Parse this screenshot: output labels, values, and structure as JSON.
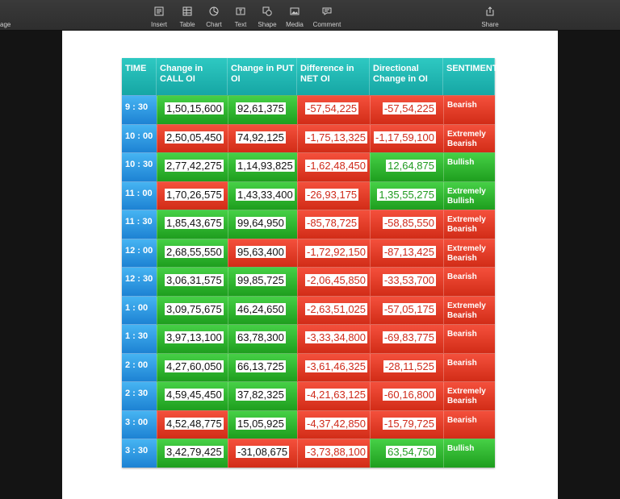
{
  "toolbar": {
    "left_label": "age",
    "items": [
      {
        "label": "Insert",
        "icon": "insert-icon"
      },
      {
        "label": "Table",
        "icon": "table-icon"
      },
      {
        "label": "Chart",
        "icon": "chart-icon"
      },
      {
        "label": "Text",
        "icon": "text-icon"
      },
      {
        "label": "Shape",
        "icon": "shape-icon"
      },
      {
        "label": "Media",
        "icon": "media-icon"
      },
      {
        "label": "Comment",
        "icon": "comment-icon"
      },
      {
        "label": "Share",
        "icon": "share-icon"
      }
    ]
  },
  "table": {
    "headers": [
      "TIME",
      "Change in CALL OI",
      "Change in PUT OI",
      "Difference in NET OI",
      "Directional Change in OI",
      "SENTIMENT"
    ],
    "colors": {
      "header": "#1eb5b0",
      "time": "#2f97e0",
      "green": "#2bb02b",
      "red": "#e23c24"
    },
    "rows": [
      {
        "time": "9 : 30",
        "call": "1,50,15,600",
        "put": "92,61,375",
        "net": "-57,54,225",
        "dir": "-57,54,225",
        "sentiment": "Bearish"
      },
      {
        "time": "10 : 00",
        "call": "2,50,05,450",
        "put": "74,92,125",
        "net": "-1,75,13,325",
        "dir": "-1,17,59,100",
        "sentiment": "Extremely Bearish"
      },
      {
        "time": "10 : 30",
        "call": "2,77,42,275",
        "put": "1,14,93,825",
        "net": "-1,62,48,450",
        "dir": "12,64,875",
        "sentiment": "Bullish"
      },
      {
        "time": "11 : 00",
        "call": "1,70,26,575",
        "put": "1,43,33,400",
        "net": "-26,93,175",
        "dir": "1,35,55,275",
        "sentiment": "Extremely Bullish"
      },
      {
        "time": "11 : 30",
        "call": "1,85,43,675",
        "put": "99,64,950",
        "net": "-85,78,725",
        "dir": "-58,85,550",
        "sentiment": "Extremely Bearish"
      },
      {
        "time": "12 : 00",
        "call": "2,68,55,550",
        "put": "95,63,400",
        "net": "-1,72,92,150",
        "dir": "-87,13,425",
        "sentiment": "Extremely Bearish"
      },
      {
        "time": "12 : 30",
        "call": "3,06,31,575",
        "put": "99,85,725",
        "net": "-2,06,45,850",
        "dir": "-33,53,700",
        "sentiment": "Bearish"
      },
      {
        "time": "1 : 00",
        "call": "3,09,75,675",
        "put": "46,24,650",
        "net": "-2,63,51,025",
        "dir": "-57,05,175",
        "sentiment": "Extremely Bearish"
      },
      {
        "time": "1 : 30",
        "call": "3,97,13,100",
        "put": "63,78,300",
        "net": "-3,33,34,800",
        "dir": "-69,83,775",
        "sentiment": "Bearish"
      },
      {
        "time": "2 : 00",
        "call": "4,27,60,050",
        "put": "66,13,725",
        "net": "-3,61,46,325",
        "dir": "-28,11,525",
        "sentiment": "Bearish"
      },
      {
        "time": "2 : 30",
        "call": "4,59,45,450",
        "put": "37,82,325",
        "net": "-4,21,63,125",
        "dir": "-60,16,800",
        "sentiment": "Extremely Bearish"
      },
      {
        "time": "3 : 00",
        "call": "4,52,48,775",
        "put": "15,05,925",
        "net": "-4,37,42,850",
        "dir": "-15,79,725",
        "sentiment": "Bearish"
      },
      {
        "time": "3 : 30",
        "call": "3,42,79,425",
        "put": "-31,08,675",
        "net": "-3,73,88,100",
        "dir": "63,54,750",
        "sentiment": "Bullish"
      }
    ]
  }
}
